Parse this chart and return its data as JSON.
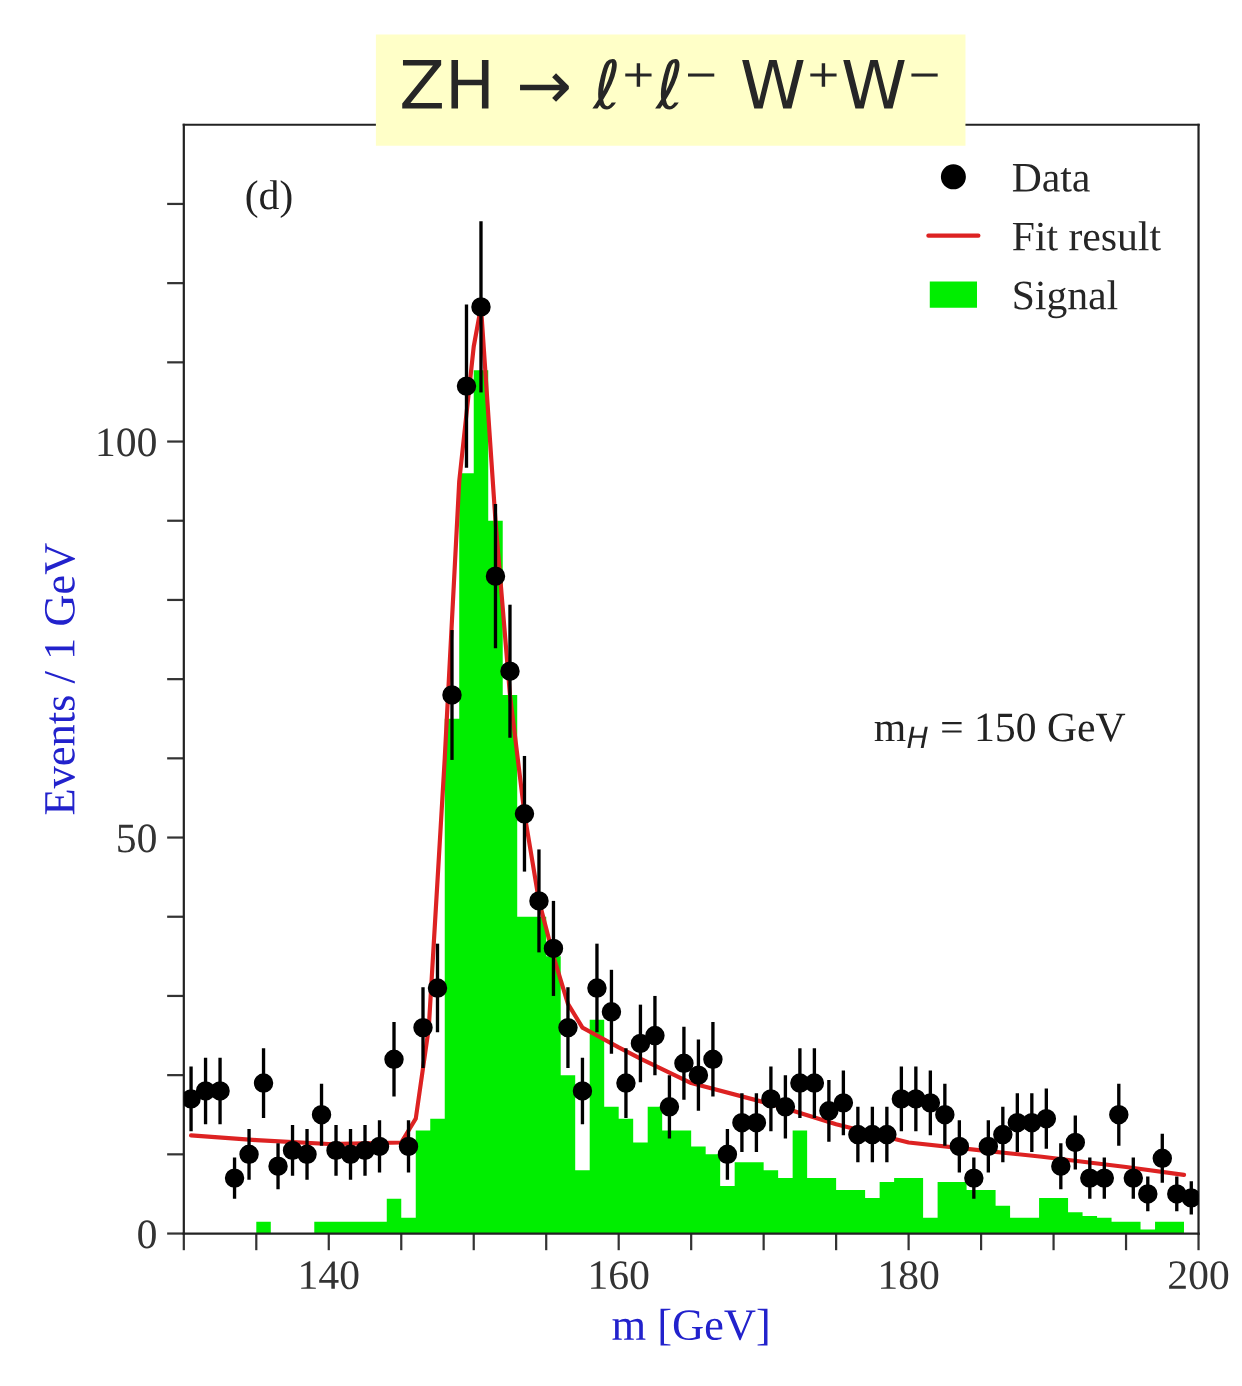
{
  "chart_data": {
    "type": "histogram",
    "title": "ZH → ℓ⁺ℓ⁻ W⁺W⁻",
    "xlabel": "m [GeV]",
    "ylabel": "Events / 1 GeV",
    "annotations": [
      "(d)",
      "m$_{H}$ = 150 GeV"
    ],
    "bins": [
      130,
      131,
      132,
      133,
      134,
      135,
      136,
      137,
      138,
      139,
      140,
      141,
      142,
      143,
      144,
      145,
      146,
      147,
      148,
      149,
      150,
      151,
      152,
      153,
      154,
      155,
      156,
      157,
      158,
      159,
      160,
      161,
      162,
      163,
      164,
      165,
      166,
      167,
      168,
      169,
      170,
      171,
      172,
      173,
      174,
      175,
      176,
      177,
      178,
      179,
      180,
      181,
      182,
      183,
      184,
      185,
      186,
      187,
      188,
      189,
      190,
      191,
      192,
      193,
      194,
      195,
      196,
      197,
      198,
      199,
      200
    ],
    "series": [
      {
        "name": "Signal",
        "color": "#00ee00",
        "values": [
          0,
          0,
          0,
          0,
          0,
          1.5,
          0,
          0,
          0,
          1.5,
          1.5,
          1.5,
          1.5,
          1.5,
          4.4,
          2,
          13,
          14.5,
          65,
          96,
          109,
          90,
          68,
          40,
          40,
          35,
          20,
          8,
          27,
          16,
          14.5,
          11.5,
          16,
          13,
          13,
          11,
          10,
          6,
          9,
          9,
          8,
          7,
          13,
          7,
          7,
          5.5,
          5.5,
          4.5,
          6.5,
          7,
          7,
          2,
          6.5,
          6.5,
          5.5,
          5.5,
          3.5,
          2,
          2,
          4.5,
          4.5,
          2.7,
          2.2,
          2,
          1.5,
          1.5,
          0.5,
          1.5,
          1.5,
          0
        ]
      },
      {
        "name": "Fit result",
        "type": "line",
        "color": "#dd2222",
        "x": [
          130.5,
          135,
          140,
          145,
          146,
          146.9,
          148,
          149,
          150,
          150.5,
          151.5,
          152.5,
          153.5,
          154.5,
          155.5,
          156.5,
          157.5,
          158.5,
          160,
          161.6,
          165,
          170.8,
          175,
          180,
          185,
          189.2,
          195,
          199
        ],
        "values": [
          12.4,
          11.8,
          11.3,
          11.5,
          14.5,
          26,
          60,
          95,
          112,
          117,
          90,
          68,
          53,
          42,
          35,
          29,
          26,
          25,
          23.5,
          22,
          19,
          16.2,
          13.8,
          11.5,
          10.5,
          9.7,
          8.4,
          7.4
        ]
      },
      {
        "name": "Data",
        "type": "scatter",
        "marker": "circle",
        "color": "#000000",
        "x": [
          130.5,
          131.5,
          132.5,
          133.5,
          134.5,
          135.5,
          136.5,
          137.5,
          138.5,
          139.5,
          140.5,
          141.5,
          142.5,
          143.5,
          144.5,
          145.5,
          146.5,
          147.5,
          148.5,
          149.5,
          150.5,
          151.5,
          152.5,
          153.5,
          154.5,
          155.5,
          156.5,
          157.5,
          158.5,
          159.5,
          160.5,
          161.5,
          162.5,
          163.5,
          164.5,
          165.5,
          166.5,
          167.5,
          168.5,
          169.5,
          170.5,
          171.5,
          172.5,
          173.5,
          174.5,
          175.5,
          176.5,
          177.5,
          178.5,
          179.5,
          180.5,
          181.5,
          182.5,
          183.5,
          184.5,
          185.5,
          186.5,
          187.5,
          188.5,
          189.5,
          190.5,
          191.5,
          192.5,
          193.5,
          194.5,
          195.5,
          196.5,
          197.5,
          198.5,
          199.5
        ],
        "values": [
          17,
          18,
          18,
          7,
          10,
          19,
          8.5,
          10.5,
          10,
          15,
          10.5,
          10,
          10.5,
          11,
          22,
          11,
          26,
          31,
          68,
          107,
          117,
          83,
          71,
          53,
          42,
          36,
          26,
          18,
          31,
          28,
          19,
          24,
          25,
          16,
          21.5,
          20,
          22,
          10,
          14,
          14,
          17,
          16,
          19,
          19,
          15.5,
          16.5,
          12.5,
          12.5,
          12.5,
          17,
          17,
          16.5,
          15,
          11,
          7,
          11,
          12.5,
          14,
          14,
          14.5,
          8.5,
          11.5,
          7,
          7,
          15,
          7,
          5,
          9.5,
          5,
          4.5
        ],
        "errors": [
          4.1,
          4.2,
          4.2,
          2.6,
          3.2,
          4.4,
          2.9,
          3.2,
          3.2,
          3.9,
          3.2,
          3.2,
          3.2,
          3.3,
          4.7,
          3.3,
          5.1,
          5.6,
          8.2,
          10.3,
          10.8,
          9.1,
          8.4,
          7.3,
          6.5,
          6,
          5.1,
          4.2,
          5.6,
          5.3,
          4.4,
          4.9,
          5,
          4,
          4.6,
          4.5,
          4.7,
          3.2,
          3.7,
          3.7,
          4.1,
          4,
          4.4,
          4.4,
          3.9,
          4.1,
          3.5,
          3.5,
          3.5,
          4.1,
          4.1,
          4.1,
          3.9,
          3.3,
          2.6,
          3.3,
          3.5,
          3.7,
          3.7,
          3.8,
          2.9,
          3.4,
          2.6,
          2.6,
          3.9,
          2.6,
          2.2,
          3.1,
          2.2,
          2.1
        ]
      }
    ],
    "legend": "top right",
    "grid": false,
    "xlim": [
      130,
      200
    ],
    "xticks": [
      {
        "value": 130,
        "label": null
      },
      {
        "value": 135,
        "label": null
      },
      140,
      {
        "value": 145,
        "label": null
      },
      {
        "value": 150,
        "label": null
      },
      {
        "value": 155,
        "label": null
      },
      160,
      {
        "value": 165,
        "label": null
      },
      {
        "value": 170,
        "label": null
      },
      {
        "value": 175,
        "label": null
      },
      180,
      {
        "value": 185,
        "label": null
      },
      {
        "value": 190,
        "label": null
      },
      {
        "value": 195,
        "label": null
      },
      200
    ],
    "ylim": [
      0,
      140
    ],
    "yticks": [
      0,
      {
        "value": 10,
        "label": null
      },
      {
        "value": 20,
        "label": null
      },
      {
        "value": 30,
        "label": null
      },
      {
        "value": 40,
        "label": null
      },
      50,
      {
        "value": 60,
        "label": null
      },
      {
        "value": 70,
        "label": null
      },
      {
        "value": 80,
        "label": null
      },
      {
        "value": 90,
        "label": null
      },
      100,
      {
        "value": 110,
        "label": null
      },
      {
        "value": 120,
        "label": null
      },
      {
        "value": 130,
        "label": null
      }
    ]
  }
}
